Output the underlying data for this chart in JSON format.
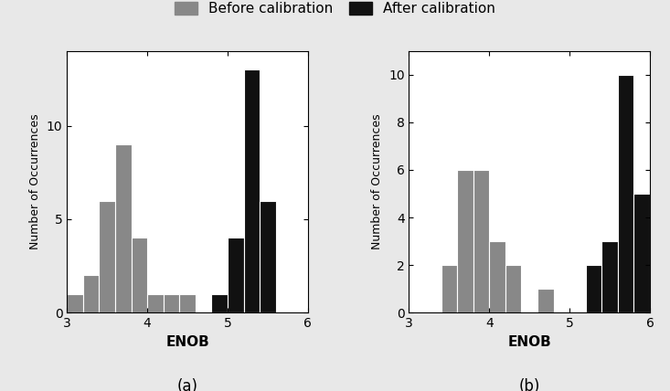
{
  "subplot_a": {
    "before_bin_edges": [
      3.0,
      3.2,
      3.4,
      3.6,
      3.8,
      4.0,
      4.2,
      4.4,
      4.6
    ],
    "before_values": [
      1,
      2,
      6,
      9,
      4,
      1,
      1,
      1
    ],
    "after_bin_edges": [
      4.8,
      5.0,
      5.2,
      5.4,
      5.6
    ],
    "after_values": [
      1,
      4,
      13,
      6
    ],
    "xlim": [
      3,
      6
    ],
    "ylim": [
      0,
      14
    ],
    "yticks": [
      0,
      5,
      10
    ],
    "xticks": [
      3,
      4,
      5,
      6
    ],
    "xlabel": "ENOB",
    "ylabel": "Number of Occurrences",
    "label": "(a)"
  },
  "subplot_b": {
    "before_bin_edges": [
      3.4,
      3.6,
      3.8,
      4.0,
      4.2,
      4.4,
      4.6,
      4.8
    ],
    "before_values": [
      2,
      6,
      6,
      3,
      2,
      0,
      1
    ],
    "after_bin_edges": [
      5.2,
      5.4,
      5.6,
      5.8,
      6.0
    ],
    "after_values": [
      2,
      3,
      10,
      5
    ],
    "xlim": [
      3,
      6
    ],
    "ylim": [
      0,
      11
    ],
    "yticks": [
      0,
      2,
      4,
      6,
      8,
      10
    ],
    "xticks": [
      3,
      4,
      5,
      6
    ],
    "xlabel": "ENOB",
    "ylabel": "Number of Occurrences",
    "label": "(b)"
  },
  "before_color": "#888888",
  "after_color": "#111111",
  "legend_before": "Before calibration",
  "legend_after": "After calibration",
  "background_color": "#ffffff",
  "figure_facecolor": "#e8e8e8"
}
